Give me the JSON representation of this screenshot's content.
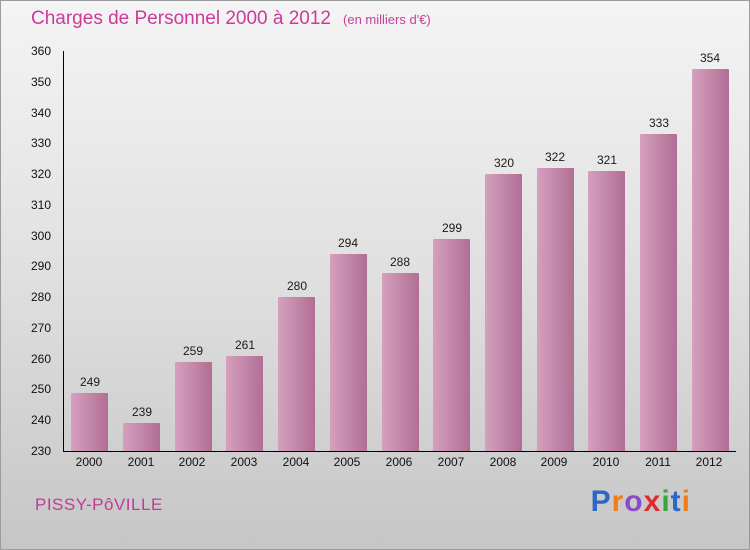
{
  "chart_data": {
    "type": "bar",
    "title": "Charges de Personnel 2000 à 2012",
    "subtitle": "(en milliers d'€)",
    "categories": [
      "2000",
      "2001",
      "2002",
      "2003",
      "2004",
      "2005",
      "2006",
      "2007",
      "2008",
      "2009",
      "2010",
      "2011",
      "2012"
    ],
    "values": [
      249,
      239,
      259,
      261,
      280,
      294,
      288,
      299,
      320,
      322,
      321,
      333,
      354
    ],
    "ylabel": "",
    "xlabel": "",
    "ylim": [
      230,
      360
    ],
    "ytick_step": 10,
    "grid": false,
    "legend": "none",
    "bar_color": "#c57ba5"
  },
  "footer": {
    "commune": "PISSY-PôVILLE"
  },
  "logo": {
    "text": "Proxiti",
    "letters": [
      {
        "ch": "P",
        "color": "#2b66c9"
      },
      {
        "ch": "r",
        "color": "#f07d1a"
      },
      {
        "ch": "o",
        "color": "#8a4bc9"
      },
      {
        "ch": "x",
        "color": "#df2b2b"
      },
      {
        "ch": "i",
        "color": "#3aa53a"
      },
      {
        "ch": "t",
        "color": "#2b66c9"
      },
      {
        "ch": "i",
        "color": "#f07d1a"
      }
    ]
  },
  "colors": {
    "title": "#cc3a9c",
    "commune_text": "#c23a98",
    "axis": "#000000",
    "value_label": "#1a1a1a"
  }
}
